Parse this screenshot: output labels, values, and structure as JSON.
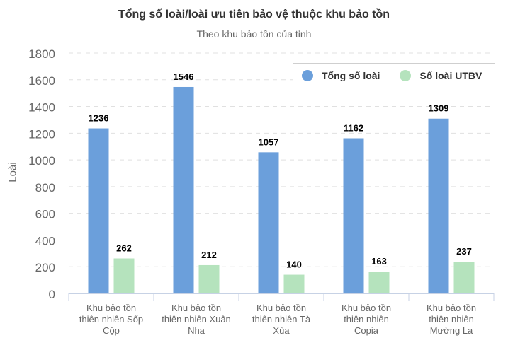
{
  "chart_data": {
    "type": "bar",
    "title": "Tổng số loài/loài ưu tiên bảo vệ thuộc khu bảo tồn",
    "subtitle": "Theo khu bảo tồn của tỉnh",
    "xlabel": "",
    "ylabel": "Loài",
    "ylim": [
      0,
      1800
    ],
    "yticks": [
      0,
      200,
      400,
      600,
      800,
      1000,
      1200,
      1400,
      1600,
      1800
    ],
    "grid": true,
    "legend_position": "top-right",
    "categories": [
      [
        "Khu bảo tồn",
        "thiên nhiên Sốp",
        "Cộp"
      ],
      [
        "Khu bảo tồn",
        "thiên nhiên Xuân",
        "Nha"
      ],
      [
        "Khu bảo tồn",
        "thiên nhiên Tà",
        "Xùa"
      ],
      [
        "Khu bảo tồn",
        "thiên nhiên",
        "Copia"
      ],
      [
        "Khu bảo tồn",
        "thiên nhiên",
        "Mường La"
      ]
    ],
    "series": [
      {
        "name": "Tổng số loài",
        "color": "#6b9fdb",
        "values": [
          1236,
          1546,
          1057,
          1162,
          1309
        ]
      },
      {
        "name": "Số loài UTBV",
        "color": "#b5e3bd",
        "values": [
          262,
          212,
          140,
          163,
          237
        ]
      }
    ]
  }
}
